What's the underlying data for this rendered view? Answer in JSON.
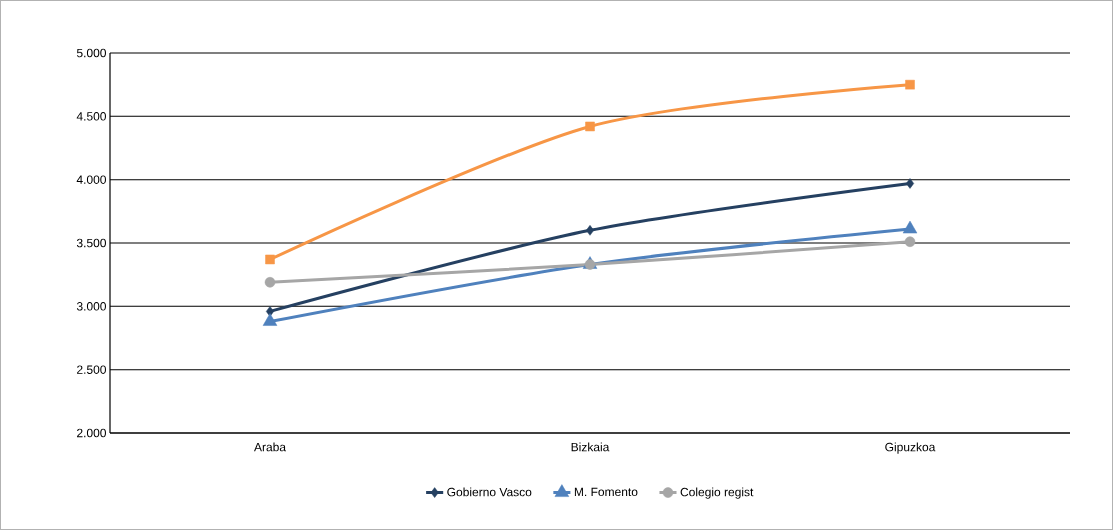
{
  "chart_data": {
    "type": "line",
    "categories": [
      "Araba",
      "Bizkaia",
      "Gipuzkoa"
    ],
    "series": [
      {
        "name": "Gobierno Vasco",
        "color": "#254061",
        "marker": "diamond",
        "values": [
          2960,
          3600,
          3970
        ]
      },
      {
        "color": "#f79646",
        "marker": "square",
        "values": [
          3370,
          4420,
          4750
        ]
      },
      {
        "name": "M. Fomento",
        "color": "#4f81bd",
        "marker": "triangle",
        "values": [
          2880,
          3330,
          3610
        ]
      },
      {
        "name": "Colegio regist",
        "color": "#a6a6a6",
        "marker": "circle",
        "values": [
          3190,
          3330,
          3510
        ]
      }
    ],
    "ylim": [
      2000,
      5000
    ],
    "yticks": [
      {
        "value": 2000,
        "label": "2.000"
      },
      {
        "value": 2500,
        "label": "2.500"
      },
      {
        "value": 3000,
        "label": "3.000"
      },
      {
        "value": 3500,
        "label": "3.500"
      },
      {
        "value": 4000,
        "label": "4.000"
      },
      {
        "value": 4500,
        "label": "4.500"
      },
      {
        "value": 5000,
        "label": "5.000"
      }
    ],
    "grid": "y",
    "legend": "bottom"
  }
}
